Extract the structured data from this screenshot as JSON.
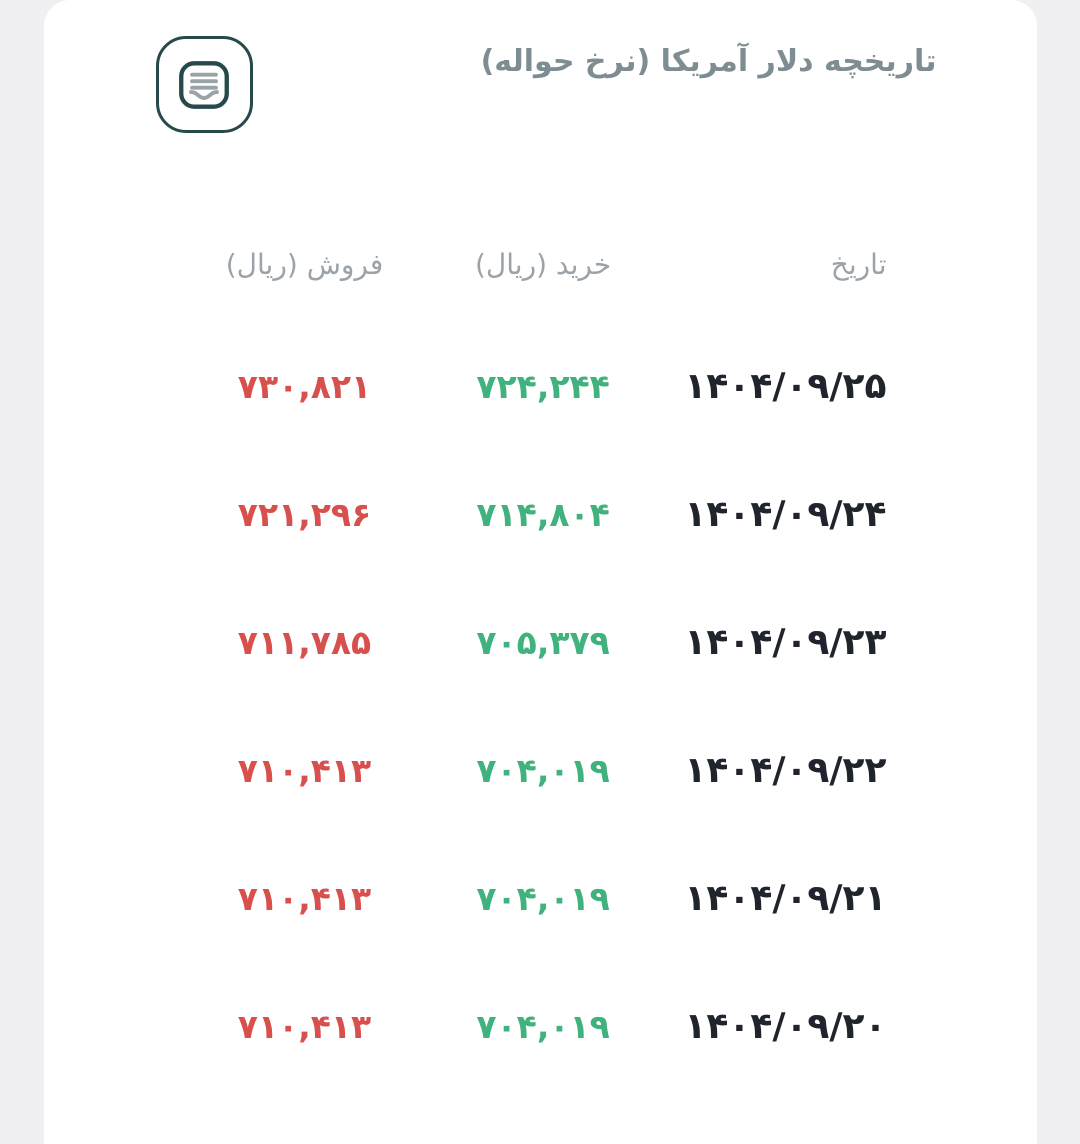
{
  "header": {
    "title": "تاریخچه دلار آمریکا (نرخ حواله)",
    "wallet_button_icon": "wallet-history-icon"
  },
  "table": {
    "columns": {
      "date": "تاریخ",
      "buy": "خرید (ریال)",
      "sell": "فروش (ریال)"
    },
    "rows": [
      {
        "date": "۱۴۰۴/۰۹/۲۵",
        "buy": "۷۲۴,۲۴۴",
        "sell": "۷۳۰,۸۲۱"
      },
      {
        "date": "۱۴۰۴/۰۹/۲۴",
        "buy": "۷۱۴,۸۰۴",
        "sell": "۷۲۱,۲۹۶"
      },
      {
        "date": "۱۴۰۴/۰۹/۲۳",
        "buy": "۷۰۵,۳۷۹",
        "sell": "۷۱۱,۷۸۵"
      },
      {
        "date": "۱۴۰۴/۰۹/۲۲",
        "buy": "۷۰۴,۰۱۹",
        "sell": "۷۱۰,۴۱۳"
      },
      {
        "date": "۱۴۰۴/۰۹/۲۱",
        "buy": "۷۰۴,۰۱۹",
        "sell": "۷۱۰,۴۱۳"
      },
      {
        "date": "۱۴۰۴/۰۹/۲۰",
        "buy": "۷۰۴,۰۱۹",
        "sell": "۷۱۰,۴۱۳"
      }
    ]
  },
  "colors": {
    "page_background": "#f0f0f2",
    "card_background": "#ffffff",
    "title_text": "#7e8d92",
    "column_header": "#9ca3a8",
    "date_text": "#20242d",
    "buy_value": "#3fb27d",
    "sell_value": "#d8504d",
    "icon_stroke": "#27494b"
  }
}
